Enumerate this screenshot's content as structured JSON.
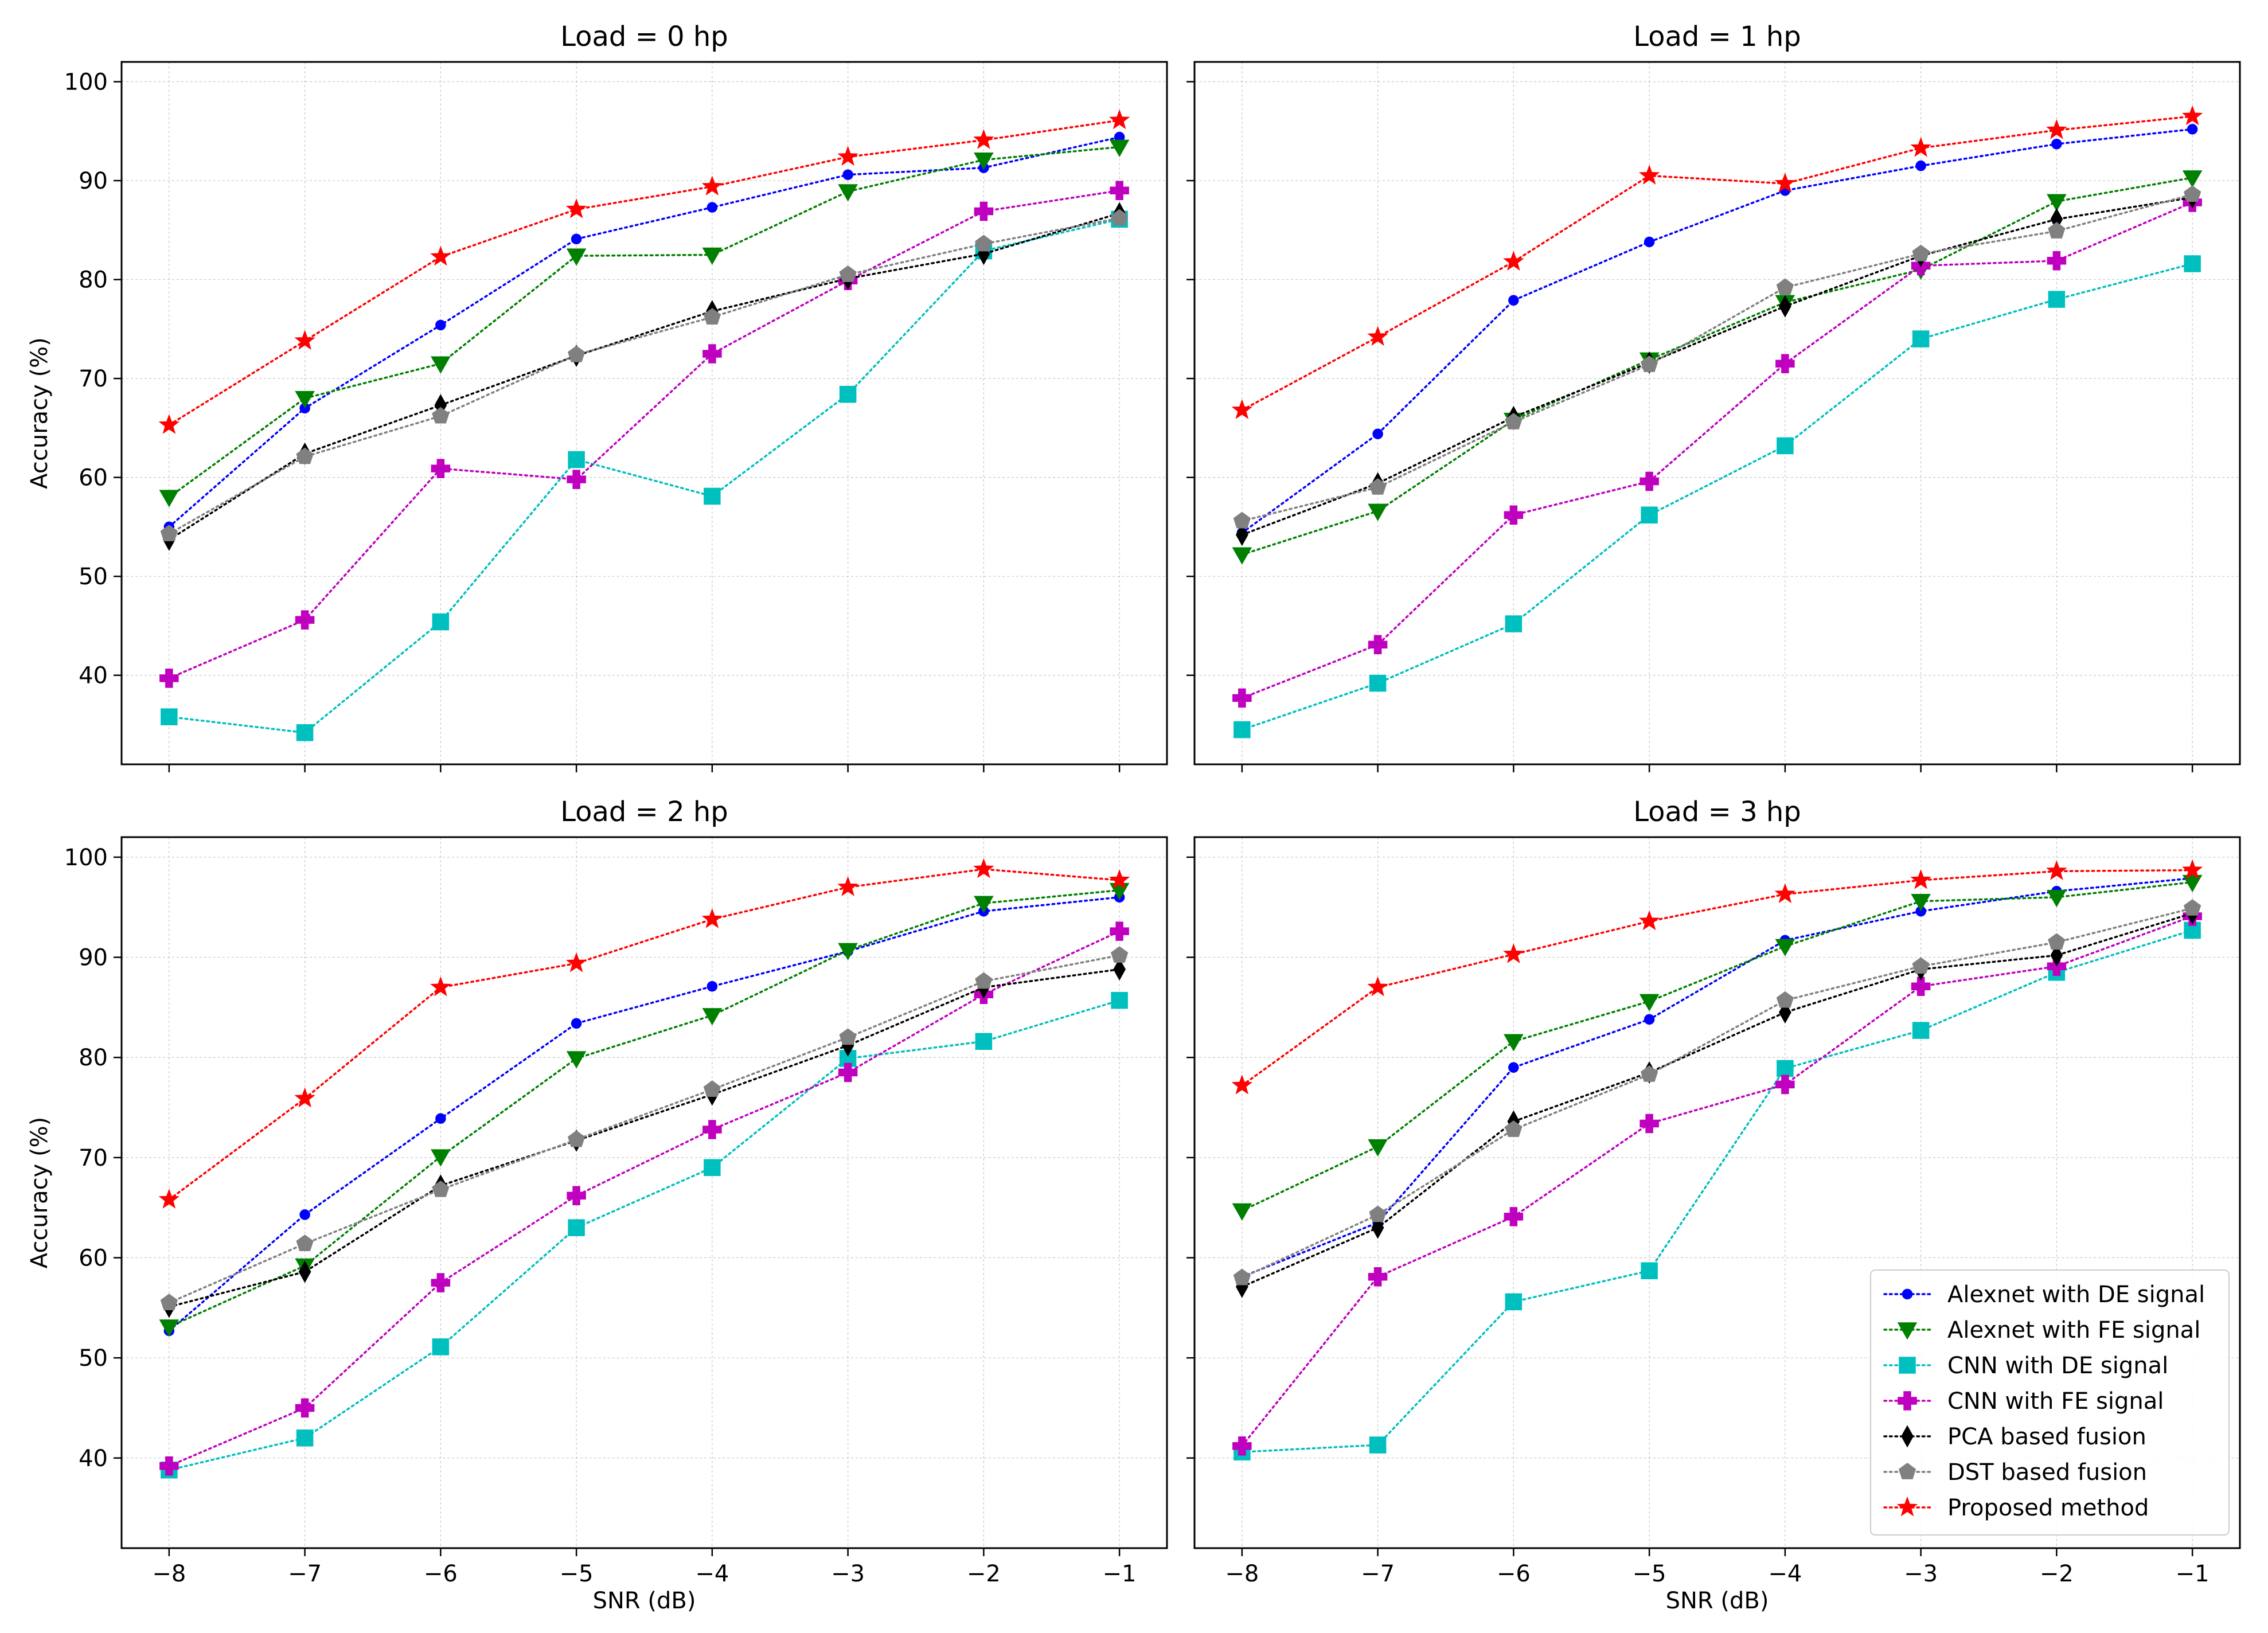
{
  "chart_data": {
    "type": "line",
    "layout": "2x2 subplots",
    "x": [
      -8,
      -7,
      -6,
      -5,
      -4,
      -3,
      -2,
      -1
    ],
    "x_tick_labels": [
      "−8",
      "−7",
      "−6",
      "−5",
      "−4",
      "−3",
      "−2",
      "−1"
    ],
    "y_ticks": [
      40,
      50,
      60,
      70,
      80,
      90,
      100
    ],
    "xlabel": "SNR (dB)",
    "ylabel": "Accuracy (%)",
    "xlim": [
      -8.35,
      -0.65
    ],
    "ylim": [
      31,
      102
    ],
    "grid": true,
    "legend_position": "lower-right of bottom-right panel",
    "series_styles": [
      {
        "name": "Alexnet with DE signal",
        "color": "#0000ff",
        "marker": "circle"
      },
      {
        "name": "Alexnet with FE signal",
        "color": "#008000",
        "marker": "triangle-down"
      },
      {
        "name": "CNN with DE signal",
        "color": "#00bfbf",
        "marker": "square"
      },
      {
        "name": "CNN with FE signal",
        "color": "#bf00bf",
        "marker": "plus"
      },
      {
        "name": "PCA based fusion",
        "color": "#000000",
        "marker": "diamond"
      },
      {
        "name": "DST based fusion",
        "color": "#808080",
        "marker": "pentagon"
      },
      {
        "name": "Proposed method",
        "color": "#ff0000",
        "marker": "star"
      }
    ],
    "panels": [
      {
        "title": "Load = 0 hp",
        "series": [
          {
            "name": "Alexnet with DE signal",
            "values": [
              55.0,
              67.0,
              75.4,
              84.1,
              87.3,
              90.6,
              91.3,
              94.4
            ]
          },
          {
            "name": "Alexnet with FE signal",
            "values": [
              58.0,
              68.0,
              71.5,
              82.4,
              82.5,
              88.9,
              92.1,
              93.4
            ]
          },
          {
            "name": "CNN with DE signal",
            "values": [
              35.8,
              34.2,
              45.4,
              61.8,
              58.1,
              68.4,
              82.9,
              86.1
            ]
          },
          {
            "name": "CNN with FE signal",
            "values": [
              39.7,
              45.6,
              60.9,
              59.8,
              72.5,
              79.9,
              86.9,
              89.0
            ]
          },
          {
            "name": "PCA based fusion",
            "values": [
              53.7,
              62.4,
              67.3,
              72.3,
              76.8,
              80.1,
              82.6,
              86.7
            ]
          },
          {
            "name": "DST based fusion",
            "values": [
              54.3,
              62.1,
              66.2,
              72.4,
              76.2,
              80.5,
              83.6,
              86.2
            ]
          },
          {
            "name": "Proposed method",
            "values": [
              65.3,
              73.8,
              82.3,
              87.1,
              89.4,
              92.4,
              94.1,
              96.1
            ]
          }
        ]
      },
      {
        "title": "Load = 1 hp",
        "series": [
          {
            "name": "Alexnet with DE signal",
            "values": [
              54.4,
              64.4,
              77.9,
              83.8,
              89.0,
              91.5,
              93.7,
              95.2
            ]
          },
          {
            "name": "Alexnet with FE signal",
            "values": [
              52.2,
              56.6,
              65.8,
              71.9,
              77.7,
              81.0,
              87.9,
              90.3
            ]
          },
          {
            "name": "CNN with DE signal",
            "values": [
              34.5,
              39.2,
              45.2,
              56.2,
              63.2,
              74.0,
              78.0,
              81.6
            ]
          },
          {
            "name": "CNN with FE signal",
            "values": [
              37.7,
              43.1,
              56.2,
              59.6,
              71.5,
              81.4,
              81.9,
              87.8
            ]
          },
          {
            "name": "PCA based fusion",
            "values": [
              54.2,
              59.4,
              66.1,
              71.6,
              77.3,
              82.4,
              86.1,
              88.3
            ]
          },
          {
            "name": "DST based fusion",
            "values": [
              55.6,
              59.0,
              65.6,
              71.4,
              79.2,
              82.6,
              84.9,
              88.6
            ]
          },
          {
            "name": "Proposed method",
            "values": [
              66.8,
              74.2,
              81.8,
              90.5,
              89.7,
              93.3,
              95.1,
              96.5
            ]
          }
        ]
      },
      {
        "title": "Load = 2 hp",
        "series": [
          {
            "name": "Alexnet with DE signal",
            "values": [
              52.7,
              64.3,
              73.9,
              83.4,
              87.1,
              90.6,
              94.6,
              96.0
            ]
          },
          {
            "name": "Alexnet with FE signal",
            "values": [
              53.1,
              59.2,
              70.1,
              79.9,
              84.2,
              90.7,
              95.4,
              96.7
            ]
          },
          {
            "name": "CNN with DE signal",
            "values": [
              38.8,
              42.0,
              51.1,
              63.0,
              69.0,
              79.9,
              81.6,
              85.7
            ]
          },
          {
            "name": "CNN with FE signal",
            "values": [
              39.2,
              45.0,
              57.5,
              66.2,
              72.8,
              78.5,
              86.3,
              92.6
            ]
          },
          {
            "name": "PCA based fusion",
            "values": [
              55.1,
              58.6,
              67.2,
              71.7,
              76.3,
              81.2,
              87.0,
              88.8
            ]
          },
          {
            "name": "DST based fusion",
            "values": [
              55.5,
              61.4,
              66.8,
              71.8,
              76.8,
              82.0,
              87.6,
              90.2
            ]
          },
          {
            "name": "Proposed method",
            "values": [
              65.8,
              75.9,
              87.0,
              89.4,
              93.8,
              97.0,
              98.8,
              97.7
            ]
          }
        ]
      },
      {
        "title": "Load = 3 hp",
        "series": [
          {
            "name": "Alexnet with DE signal",
            "values": [
              58.1,
              63.5,
              79.0,
              83.8,
              91.7,
              94.6,
              96.6,
              97.9
            ]
          },
          {
            "name": "Alexnet with FE signal",
            "values": [
              64.7,
              71.1,
              81.6,
              85.6,
              91.1,
              95.6,
              96.0,
              97.5
            ]
          },
          {
            "name": "CNN with DE signal",
            "values": [
              40.6,
              41.3,
              55.6,
              58.7,
              78.9,
              82.7,
              88.5,
              92.7
            ]
          },
          {
            "name": "CNN with FE signal",
            "values": [
              41.2,
              58.1,
              64.1,
              73.4,
              77.3,
              87.1,
              89.1,
              94.1
            ]
          },
          {
            "name": "PCA based fusion",
            "values": [
              57.1,
              63.0,
              73.6,
              78.5,
              84.5,
              88.8,
              90.2,
              94.4
            ]
          },
          {
            "name": "DST based fusion",
            "values": [
              58.0,
              64.3,
              72.8,
              78.3,
              85.7,
              89.1,
              91.5,
              94.9
            ]
          },
          {
            "name": "Proposed method",
            "values": [
              77.2,
              87.0,
              90.3,
              93.6,
              96.3,
              97.7,
              98.6,
              98.7
            ]
          }
        ]
      }
    ]
  }
}
